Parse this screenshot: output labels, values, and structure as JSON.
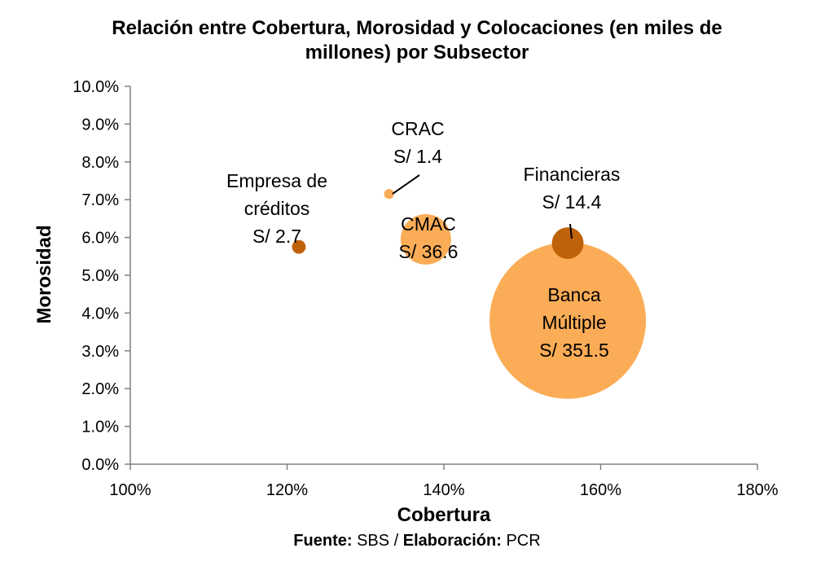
{
  "chart_data": {
    "type": "bubble",
    "title_line1": "Relación entre Cobertura, Morosidad y Colocaciones (en miles de",
    "title_line2": "millones) por Subsector",
    "xlabel": "Cobertura",
    "ylabel": "Morosidad",
    "xlim": [
      100,
      180
    ],
    "ylim": [
      0,
      10
    ],
    "x_ticks": [
      "100%",
      "120%",
      "140%",
      "160%",
      "180%"
    ],
    "y_ticks": [
      "0.0%",
      "1.0%",
      "2.0%",
      "3.0%",
      "4.0%",
      "5.0%",
      "6.0%",
      "7.0%",
      "8.0%",
      "9.0%",
      "10.0%"
    ],
    "grid": false,
    "colors": {
      "dark": "#c0620a",
      "light": "#fbac56",
      "axis": "#808080"
    },
    "points": [
      {
        "label_lines": [
          "Empresa de",
          "créditos",
          "S/ 2.7"
        ],
        "x": 121.5,
        "y": 5.75,
        "size": 2.7,
        "color": "dark"
      },
      {
        "label_lines": [
          "CRAC",
          "S/ 1.4"
        ],
        "x": 133.0,
        "y": 7.15,
        "size": 1.4,
        "color": "light"
      },
      {
        "label_lines": [
          "CMAC",
          "S/ 36.6"
        ],
        "x": 137.7,
        "y": 5.95,
        "size": 36.6,
        "color": "light"
      },
      {
        "label_lines": [
          "Financieras",
          "S/ 14.4"
        ],
        "x": 155.8,
        "y": 5.85,
        "size": 14.4,
        "color": "dark"
      },
      {
        "label_lines": [
          "Banca",
          "Múltiple",
          "S/ 351.5"
        ],
        "x": 155.8,
        "y": 3.8,
        "size": 351.5,
        "color": "light"
      }
    ]
  },
  "source": {
    "fuente_label": "Fuente:",
    "fuente_value": " SBS / ",
    "elab_label": "Elaboración:",
    "elab_value": " PCR"
  }
}
